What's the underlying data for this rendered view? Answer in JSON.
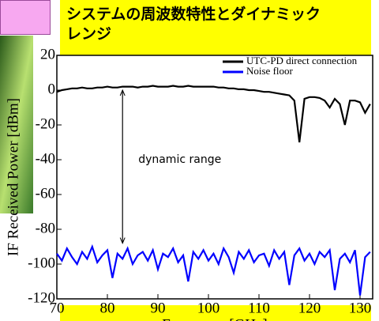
{
  "chart_data": {
    "type": "line",
    "title": [
      "システムの周波数特性とダイナミック",
      "レンジ"
    ],
    "xlabel": "Frequency [GHz]",
    "ylabel": "IF Received Power [dBm]",
    "annotation": "dynamic range",
    "legend": "upper right",
    "xlim": [
      70,
      132.5
    ],
    "ylim": [
      -120,
      20
    ],
    "xticks": [
      70,
      80,
      90,
      100,
      110,
      120,
      130
    ],
    "yticks": [
      20,
      0,
      -20,
      -40,
      -60,
      -80,
      -100,
      -120
    ],
    "x": [
      70,
      71,
      72,
      73,
      74,
      75,
      76,
      77,
      78,
      79,
      80,
      81,
      82,
      83,
      84,
      85,
      86,
      87,
      88,
      89,
      90,
      91,
      92,
      93,
      94,
      95,
      96,
      97,
      98,
      99,
      100,
      101,
      102,
      103,
      104,
      105,
      106,
      107,
      108,
      109,
      110,
      111,
      112,
      113,
      114,
      115,
      116,
      117,
      118,
      119,
      120,
      121,
      122,
      123,
      124,
      125,
      126,
      127,
      128,
      129,
      130,
      131,
      132
    ],
    "series": [
      {
        "name": "UTC-PD direct connection",
        "color": "#000000",
        "values": [
          -1,
          0,
          0.5,
          1,
          1,
          1.5,
          1,
          1,
          1.5,
          1.5,
          2,
          1.5,
          1.5,
          2,
          2,
          2,
          1.5,
          2,
          2,
          2.5,
          2,
          2,
          2,
          2.5,
          2,
          2,
          2.5,
          2,
          2,
          2,
          2,
          2,
          1.5,
          1.5,
          1,
          1,
          0.5,
          0.5,
          0,
          0,
          -0.5,
          -1,
          -1,
          -1.5,
          -2,
          -2.5,
          -3,
          -6,
          -30,
          -5,
          -4,
          -4,
          -4.5,
          -6,
          -10,
          -5,
          -8,
          -20,
          -6,
          -6,
          -7,
          -13,
          -8
        ]
      },
      {
        "name": "Noise floor",
        "color": "#0000ff",
        "values": [
          -94,
          -98,
          -91,
          -96,
          -100,
          -93,
          -97,
          -90,
          -99,
          -95,
          -92,
          -108,
          -94,
          -97,
          -91,
          -100,
          -95,
          -93,
          -98,
          -92,
          -103,
          -94,
          -96,
          -91,
          -99,
          -95,
          -110,
          -93,
          -97,
          -92,
          -98,
          -94,
          -100,
          -91,
          -96,
          -105,
          -93,
          -97,
          -92,
          -99,
          -95,
          -94,
          -101,
          -92,
          -97,
          -93,
          -112,
          -95,
          -91,
          -98,
          -94,
          -100,
          -93,
          -96,
          -92,
          -115,
          -97,
          -94,
          -99,
          -92,
          -118,
          -96,
          -93
        ]
      }
    ]
  }
}
